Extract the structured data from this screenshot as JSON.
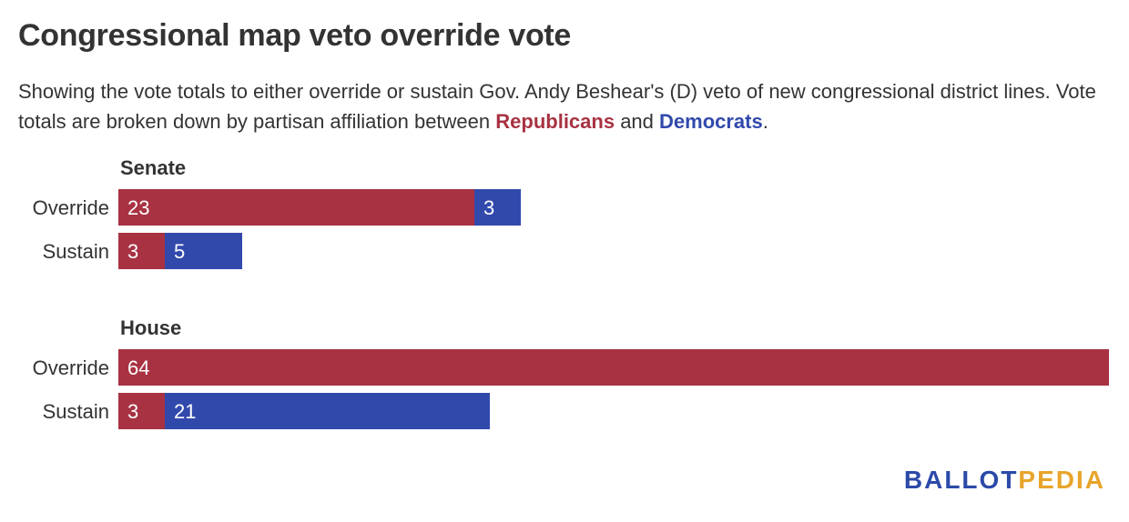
{
  "header": {
    "title": "Congressional map veto override vote",
    "subtitle_pre": "Showing the vote totals to either override or sustain Gov. Andy Beshear's (D) veto of new congressional district lines. Vote totals are broken down by partisan affiliation between ",
    "subtitle_rep": "Republicans",
    "subtitle_mid": " and ",
    "subtitle_dem": "Democrats",
    "subtitle_post": "."
  },
  "colors": {
    "republican": "#a83242",
    "democrat": "#3249ac",
    "text": "#333333"
  },
  "logo": {
    "part1": "BALLOT",
    "part2": "PEDIA"
  },
  "chart_data": {
    "type": "bar",
    "orientation": "horizontal",
    "stacked": true,
    "xlim": [
      0,
      64
    ],
    "legend": "none",
    "grid": false,
    "groups": [
      {
        "title": "Senate",
        "categories": [
          "Override",
          "Sustain"
        ],
        "series": [
          {
            "name": "Republicans",
            "values": [
              23,
              3
            ]
          },
          {
            "name": "Democrats",
            "values": [
              3,
              5
            ]
          }
        ]
      },
      {
        "title": "House",
        "categories": [
          "Override",
          "Sustain"
        ],
        "series": [
          {
            "name": "Republicans",
            "values": [
              64,
              3
            ]
          },
          {
            "name": "Democrats",
            "values": [
              0,
              21
            ]
          }
        ]
      }
    ]
  }
}
